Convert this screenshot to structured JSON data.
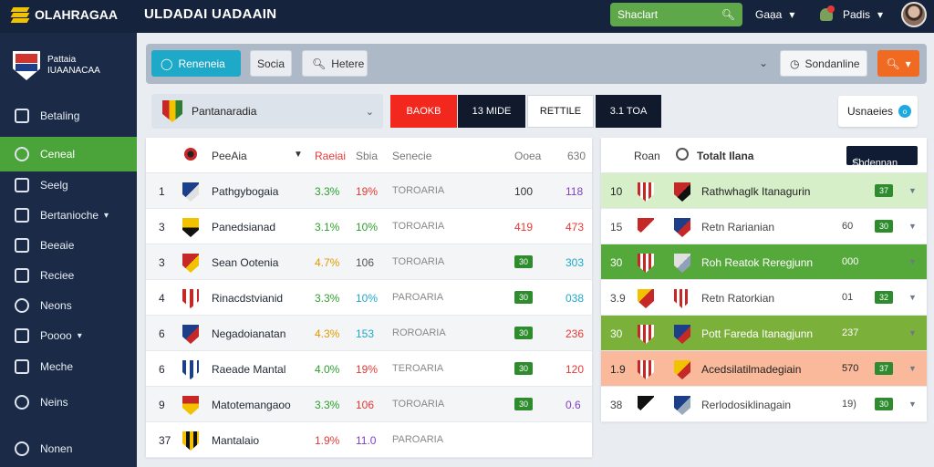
{
  "topbar": {
    "logo_text": "OLAHRAGAA",
    "app_title": "ULDADAI UADAAIN",
    "search_value": "Shaclart",
    "dropdown1": "Gaạa",
    "dropdown2": "Padis"
  },
  "sidebar": {
    "brand_line1": "Pattaia",
    "brand_line2": "IUAANACAA",
    "items": [
      {
        "label": "Betaling"
      },
      {
        "label": "Ceneal"
      },
      {
        "label": "Seelg"
      },
      {
        "label": "Bertanioche"
      },
      {
        "label": "Beeaie"
      },
      {
        "label": "Reciee"
      },
      {
        "label": "Neons"
      },
      {
        "label": "Poooo"
      },
      {
        "label": "Meche"
      },
      {
        "label": "Neins"
      },
      {
        "label": "Nonen"
      }
    ]
  },
  "filterbar": {
    "primary": "Reneneia",
    "btn2": "Socia",
    "btn3": "Hetere",
    "select": "Sondanline"
  },
  "selector": {
    "label": "Pantanaradia"
  },
  "tabs": [
    "BAOKB",
    "13 MIDE",
    "RETTILE",
    "3.1 TOA"
  ],
  "users_button": {
    "label": "Usnaeies"
  },
  "standings": {
    "headers": {
      "team": "PeeAia",
      "col1": "Raeiai",
      "col2": "Sbia",
      "col3": "Senecie",
      "col4": "Ooea",
      "col5": "630"
    },
    "rows": [
      {
        "rank": "1",
        "team": "Pathgybogaia",
        "pct": "3.3%",
        "form": "19%",
        "detail": "TOROARIA",
        "v1": "100",
        "v2": "118"
      },
      {
        "rank": "3",
        "team": "Panedsianad",
        "pct": "3.1%",
        "form": "10%",
        "detail": "TOROARIA",
        "v1": "419",
        "v2": "473"
      },
      {
        "rank": "3",
        "team": "Sean Ootenia",
        "pct": "4.7%",
        "form": "106",
        "detail": "TOROARIA",
        "v1": "30",
        "v2": "303"
      },
      {
        "rank": "4",
        "team": "Rinacdstvianid",
        "pct": "3.3%",
        "form": "10%",
        "detail": "PAROARIA",
        "v1": "30",
        "v2": "038"
      },
      {
        "rank": "6",
        "team": "Negadoianatan",
        "pct": "4.3%",
        "form": "153",
        "detail": "ROROARIA",
        "v1": "30",
        "v2": "236"
      },
      {
        "rank": "6",
        "team": "Raeade Mantal",
        "pct": "4.0%",
        "form": "19%",
        "detail": "TEROARIA",
        "v1": "30",
        "v2": "120"
      },
      {
        "rank": "9",
        "team": "Matotemangaoo",
        "pct": "3.3%",
        "form": "106",
        "detail": "TOROARIA",
        "v1": "30",
        "v2": "0.6"
      },
      {
        "rank": "37",
        "team": "Mantalaio",
        "pct": "1.9%",
        "form": "11.0",
        "detail": "PAROARIA",
        "v1": "",
        "v2": ""
      }
    ]
  },
  "fixtures": {
    "headers": {
      "col1": "Roan",
      "title": "Totalt Ilana",
      "search": "Sbdennan"
    },
    "rows": [
      {
        "num": "10",
        "match": "Rathwhaglk Itanagurin",
        "val": "",
        "badge": "37"
      },
      {
        "num": "15",
        "match": "Retn Rarianian",
        "val": "60",
        "badge": "30"
      },
      {
        "num": "30",
        "match": "Roh Reatok Reregjunn",
        "val": "000",
        "badge": ""
      },
      {
        "num": "3.9",
        "match": "Retn Ratorkian",
        "val": "01",
        "badge": "32"
      },
      {
        "num": "30",
        "match": "Pott Fareda Itanagjunn",
        "val": "237",
        "badge": ""
      },
      {
        "num": "1.9",
        "match": "Acedsilatilmadegiain",
        "val": "570",
        "badge": "37"
      },
      {
        "num": "38",
        "match": "Rerlodosiklinagain",
        "val": "19)",
        "badge": "30"
      }
    ]
  },
  "colors": {
    "topbar": "#16233d",
    "sidebar": "#1b2b47",
    "accent_green": "#4aa43a",
    "accent_cyan": "#1ea9c8",
    "accent_orange": "#f06a22",
    "tab_red": "#f2281f"
  }
}
